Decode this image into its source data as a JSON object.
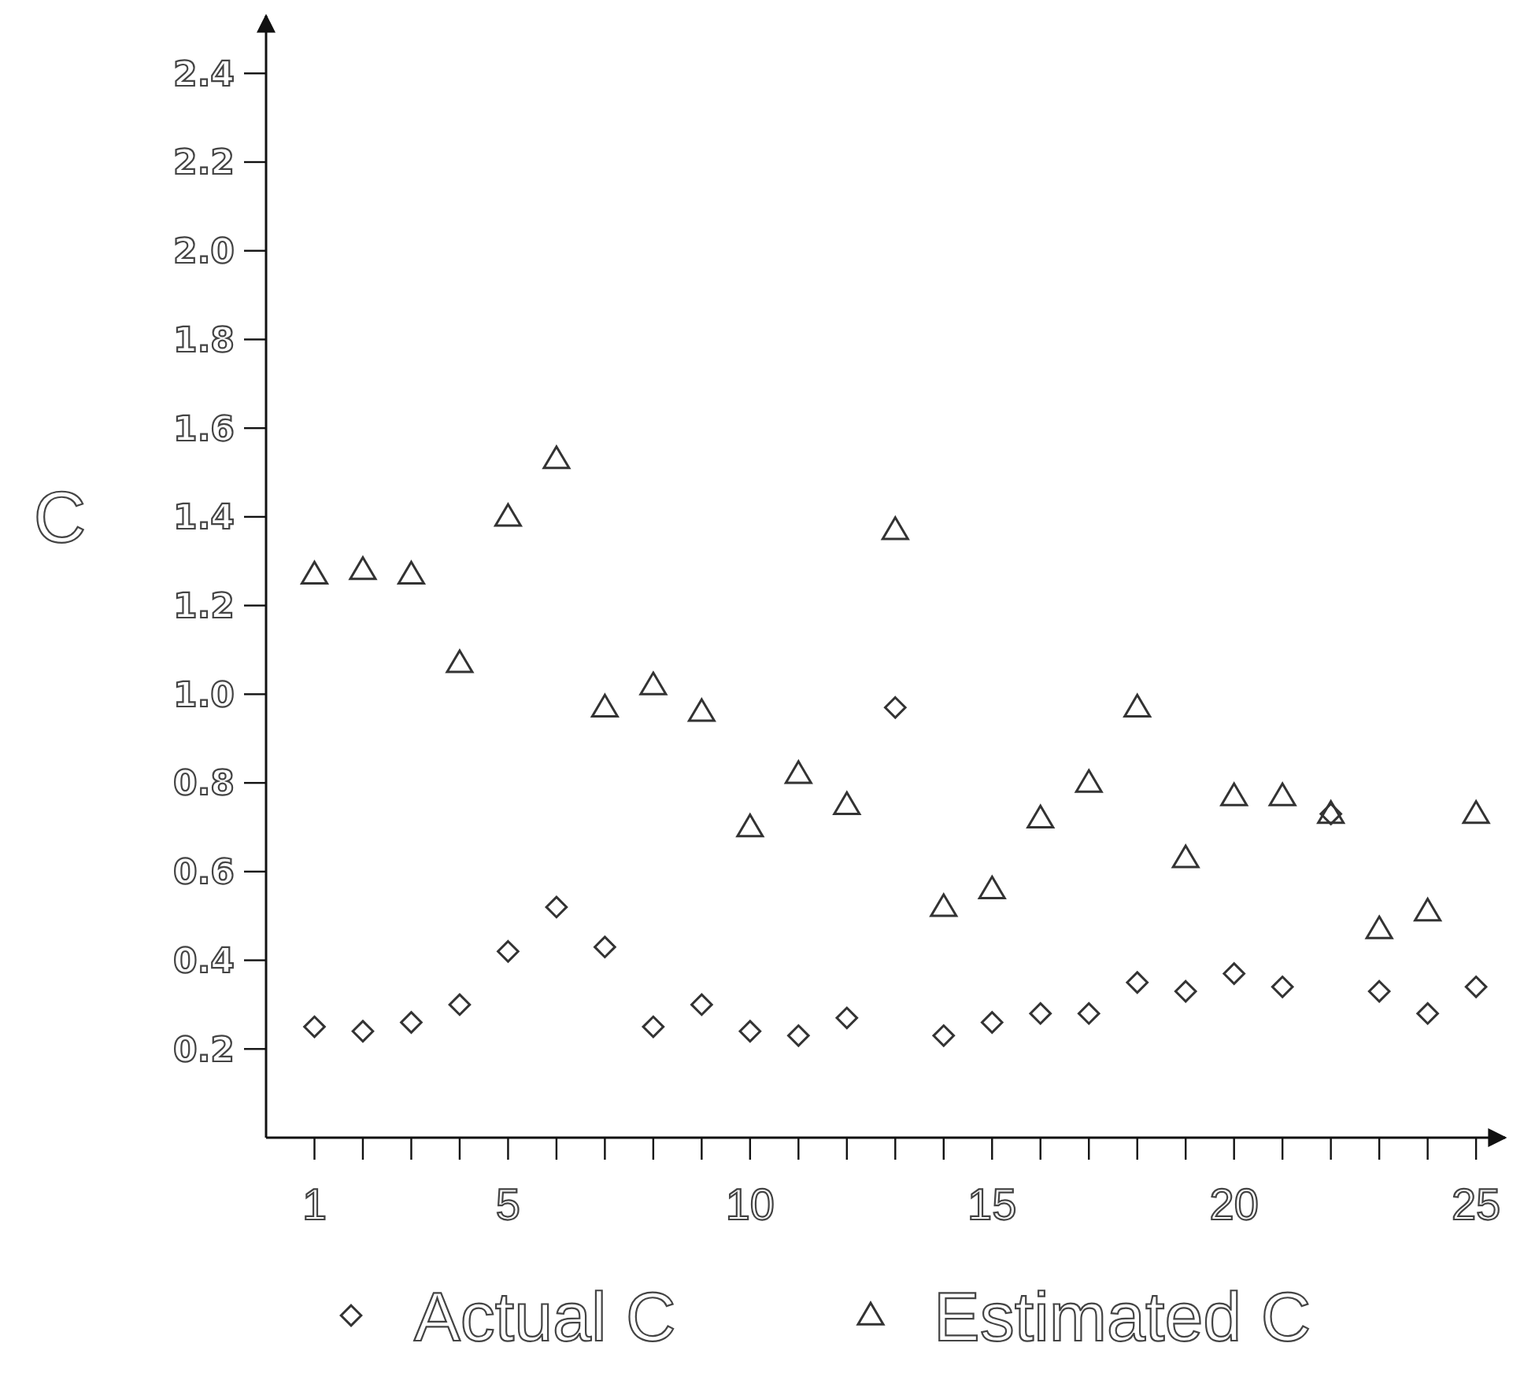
{
  "chart_data": {
    "type": "scatter",
    "ylabel": "C",
    "x": [
      1,
      2,
      3,
      4,
      5,
      6,
      7,
      8,
      9,
      10,
      11,
      12,
      13,
      14,
      15,
      16,
      17,
      18,
      19,
      20,
      21,
      22,
      23,
      24,
      25
    ],
    "series": [
      {
        "name": "Actual C",
        "color": "#333333",
        "marker": "diamond",
        "values": [
          0.25,
          0.24,
          0.26,
          0.3,
          0.42,
          0.52,
          0.43,
          0.25,
          0.3,
          0.24,
          0.23,
          0.27,
          0.97,
          0.23,
          0.26,
          0.28,
          0.28,
          0.35,
          0.33,
          0.37,
          0.34,
          0.73,
          0.33,
          0.28,
          0.34
        ]
      },
      {
        "name": "Estimated C",
        "color": "#333333",
        "marker": "triangle",
        "values": [
          1.27,
          1.28,
          1.27,
          1.07,
          1.4,
          1.53,
          0.97,
          1.02,
          0.96,
          0.7,
          0.82,
          0.75,
          1.37,
          0.52,
          0.56,
          0.72,
          0.8,
          0.97,
          0.63,
          0.77,
          0.77,
          0.73,
          0.47,
          0.51,
          0.73
        ]
      }
    ],
    "xlim": [
      0,
      25.6
    ],
    "ylim": [
      0,
      2.53
    ],
    "xticks": [
      1,
      {
        "value": 2,
        "label": null
      },
      {
        "value": 3,
        "label": null
      },
      {
        "value": 4,
        "label": null
      },
      5,
      {
        "value": 6,
        "label": null
      },
      {
        "value": 7,
        "label": null
      },
      {
        "value": 8,
        "label": null
      },
      {
        "value": 9,
        "label": null
      },
      10,
      {
        "value": 11,
        "label": null
      },
      {
        "value": 12,
        "label": null
      },
      {
        "value": 13,
        "label": null
      },
      {
        "value": 14,
        "label": null
      },
      15,
      {
        "value": 16,
        "label": null
      },
      {
        "value": 17,
        "label": null
      },
      {
        "value": 18,
        "label": null
      },
      {
        "value": 19,
        "label": null
      },
      20,
      {
        "value": 21,
        "label": null
      },
      {
        "value": 22,
        "label": null
      },
      {
        "value": 23,
        "label": null
      },
      {
        "value": 24,
        "label": null
      },
      25
    ],
    "yticks": [
      {
        "value": 0.2,
        "label": "0.2"
      },
      {
        "value": 0.4,
        "label": "0.4"
      },
      {
        "value": 0.6,
        "label": "0.6"
      },
      {
        "value": 0.8,
        "label": "0.8"
      },
      {
        "value": 1.0,
        "label": "1.0"
      },
      {
        "value": 1.2,
        "label": "1.2"
      },
      {
        "value": 1.4,
        "label": "1.4"
      },
      {
        "value": 1.6,
        "label": "1.6"
      },
      {
        "value": 1.8,
        "label": "1.8"
      },
      {
        "value": 2.0,
        "label": "2.0"
      },
      {
        "value": 2.2,
        "label": "2.2"
      },
      {
        "value": 2.4,
        "label": "2.4"
      }
    ],
    "grid": false,
    "legend": "bottom"
  }
}
